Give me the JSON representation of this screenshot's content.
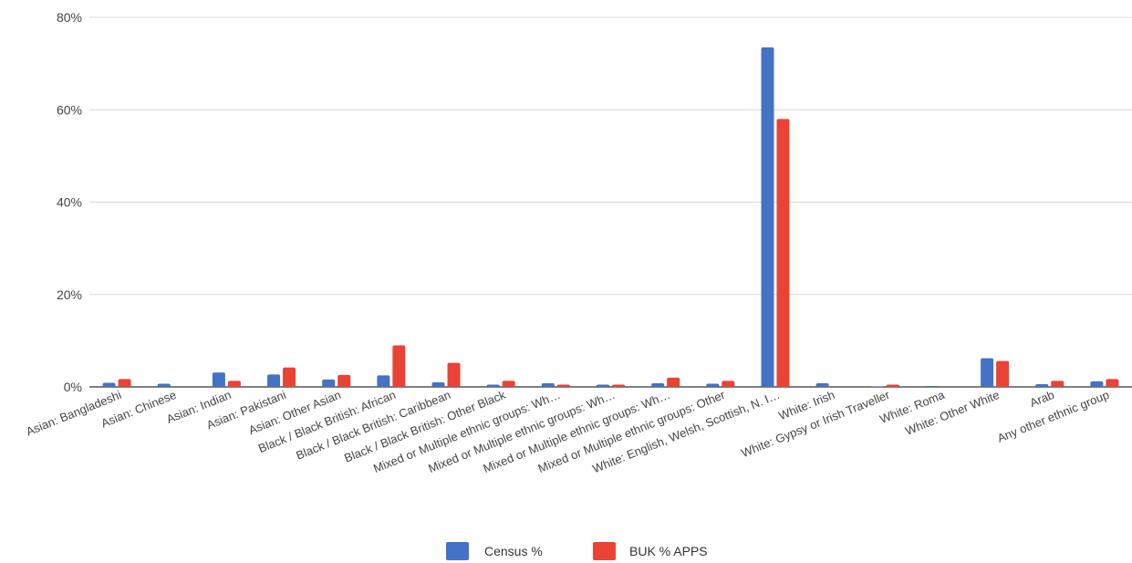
{
  "chart_data": {
    "type": "bar",
    "title": "",
    "xlabel": "",
    "ylabel": "",
    "ylim": [
      0,
      80
    ],
    "y_ticks": [
      "0%",
      "20%",
      "40%",
      "60%",
      "80%"
    ],
    "y_tick_values": [
      0,
      20,
      40,
      60,
      80
    ],
    "grid": true,
    "legend_position": "bottom",
    "categories": [
      "Asian: Bangladeshi",
      "Asian: Chinese",
      "Asian: Indian",
      "Asian: Pakistani",
      "Asian: Other Asian",
      "Black / Black British: African",
      "Black / Black British: Caribbean",
      "Black / Black British: Other Black",
      "Mixed or Multiple ethnic groups: Wh…",
      "Mixed or Multiple ethnic groups: Wh…",
      "Mixed or Multiple ethnic groups: Wh…",
      "Mixed or Multiple ethnic groups: Other",
      "White: English, Welsh, Scottish, N. I…",
      "White: Irish",
      "White: Gypsy or Irish Traveller",
      "White: Roma",
      "White: Other White",
      "Arab",
      "Any other ethnic group"
    ],
    "series": [
      {
        "name": "Census %",
        "color": "#4472C4",
        "values": [
          0.9,
          0.7,
          3.1,
          2.7,
          1.6,
          2.5,
          1.0,
          0.5,
          0.8,
          0.5,
          0.8,
          0.7,
          73.5,
          0.8,
          0.1,
          0.2,
          6.2,
          0.6,
          1.2
        ]
      },
      {
        "name": "BUK % APPS",
        "color": "#EA4335",
        "values": [
          1.7,
          0.0,
          1.3,
          4.2,
          2.6,
          9.0,
          5.2,
          1.3,
          0.5,
          0.5,
          2.0,
          1.3,
          58.0,
          0.0,
          0.5,
          0.0,
          5.6,
          1.3,
          1.7
        ]
      }
    ]
  }
}
